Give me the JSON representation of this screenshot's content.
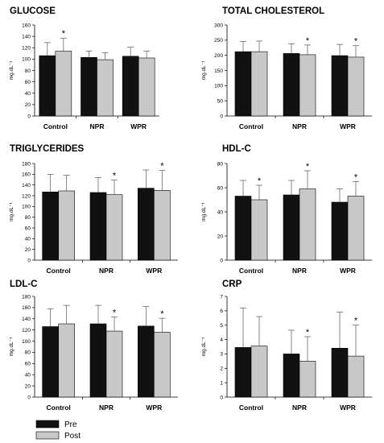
{
  "chart_data": [
    {
      "type": "bar",
      "title": "GLUCOSE",
      "ylabel": "mg.dL⁻¹",
      "ylim": [
        0,
        160
      ],
      "yticks": [
        0,
        20,
        40,
        60,
        80,
        100,
        120,
        140,
        160
      ],
      "categories": [
        "Control",
        "NPR",
        "WPR"
      ],
      "series": [
        {
          "name": "Pre",
          "values": [
            106,
            103,
            105
          ],
          "errors": [
            23,
            11,
            16
          ]
        },
        {
          "name": "Post",
          "values": [
            114,
            99,
            102
          ],
          "errors": [
            23,
            12,
            12
          ]
        }
      ],
      "significance": [
        [
          false,
          true
        ],
        [
          false,
          false
        ],
        [
          false,
          false
        ]
      ]
    },
    {
      "type": "bar",
      "title": "TOTAL CHOLESTEROL",
      "ylabel": "mg.dL⁻¹",
      "ylim": [
        0,
        300
      ],
      "yticks": [
        0,
        50,
        100,
        150,
        200,
        250,
        300
      ],
      "categories": [
        "Control",
        "NPR",
        "WPR"
      ],
      "series": [
        {
          "name": "Pre",
          "values": [
            212,
            206,
            199
          ],
          "errors": [
            34,
            32,
            37
          ]
        },
        {
          "name": "Post",
          "values": [
            212,
            202,
            194
          ],
          "errors": [
            35,
            32,
            38
          ]
        }
      ],
      "significance": [
        [
          false,
          false
        ],
        [
          false,
          true
        ],
        [
          false,
          true
        ]
      ]
    },
    {
      "type": "bar",
      "title": "TRIGLYCERIDES",
      "ylabel": "mg.dL⁻¹",
      "ylim": [
        0,
        180
      ],
      "yticks": [
        0,
        20,
        40,
        60,
        80,
        100,
        120,
        140,
        160,
        180
      ],
      "categories": [
        "Control",
        "NPR",
        "WPR"
      ],
      "series": [
        {
          "name": "Pre",
          "values": [
            127,
            126,
            134
          ],
          "errors": [
            33,
            28,
            34
          ]
        },
        {
          "name": "Post",
          "values": [
            129,
            122,
            130
          ],
          "errors": [
            29,
            27,
            37
          ]
        }
      ],
      "significance": [
        [
          false,
          false
        ],
        [
          false,
          true
        ],
        [
          false,
          true
        ]
      ]
    },
    {
      "type": "bar",
      "title": "HDL-C",
      "ylabel": "mg.dL⁻¹",
      "ylim": [
        0,
        80
      ],
      "yticks": [
        0,
        20,
        40,
        60,
        80
      ],
      "categories": [
        "Control",
        "NPR",
        "WPR"
      ],
      "series": [
        {
          "name": "Pre",
          "values": [
            53,
            54,
            48
          ],
          "errors": [
            13,
            12,
            11
          ]
        },
        {
          "name": "Post",
          "values": [
            50,
            59,
            53
          ],
          "errors": [
            12,
            15,
            12
          ]
        }
      ],
      "significance": [
        [
          false,
          true
        ],
        [
          false,
          true
        ],
        [
          false,
          true
        ]
      ]
    },
    {
      "type": "bar",
      "title": "LDL-C",
      "ylabel": "mg.dL⁻¹",
      "ylim": [
        0,
        180
      ],
      "yticks": [
        0,
        20,
        40,
        60,
        80,
        100,
        120,
        140,
        160,
        180
      ],
      "categories": [
        "Control",
        "NPR",
        "WPR"
      ],
      "series": [
        {
          "name": "Pre",
          "values": [
            126,
            131,
            127
          ],
          "errors": [
            32,
            33,
            35
          ]
        },
        {
          "name": "Post",
          "values": [
            131,
            118,
            116
          ],
          "errors": [
            33,
            25,
            25
          ]
        }
      ],
      "significance": [
        [
          false,
          false
        ],
        [
          false,
          true
        ],
        [
          false,
          true
        ]
      ]
    },
    {
      "type": "bar",
      "title": "CRP",
      "ylabel": "mg.dL⁻¹",
      "ylim": [
        0,
        7
      ],
      "yticks": [
        0,
        1,
        2,
        3,
        4,
        5,
        6,
        7
      ],
      "categories": [
        "Control",
        "NPR",
        "WPR"
      ],
      "series": [
        {
          "name": "Pre",
          "values": [
            3.45,
            3.0,
            3.4
          ],
          "errors": [
            2.75,
            1.65,
            2.5
          ]
        },
        {
          "name": "Post",
          "values": [
            3.55,
            2.5,
            2.85
          ],
          "errors": [
            2.05,
            1.7,
            2.15
          ]
        }
      ],
      "significance": [
        [
          false,
          false
        ],
        [
          false,
          true
        ],
        [
          false,
          true
        ]
      ]
    }
  ],
  "legend": {
    "entries": [
      {
        "label": "Pre",
        "color": "#111111"
      },
      {
        "label": "Post",
        "color": "#c8c8c8"
      }
    ]
  },
  "significance_marker": "*",
  "colors": {
    "pre": "#111111",
    "post": "#c8c8c8",
    "axis": "#000000"
  }
}
